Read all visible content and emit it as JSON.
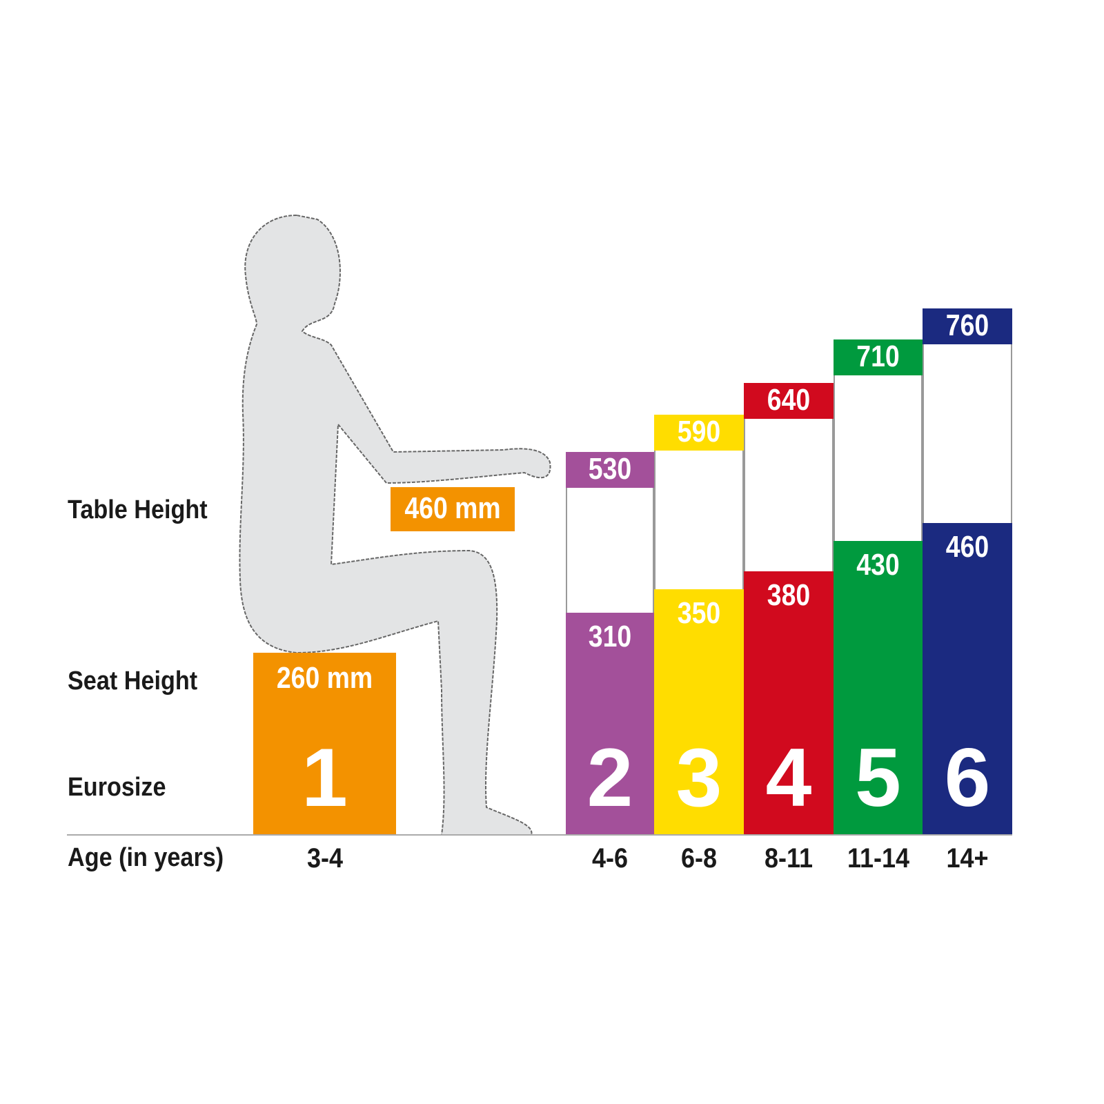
{
  "row_labels": {
    "table_height": "Table Height",
    "seat_height": "Seat Height",
    "eurosize": "Eurosize",
    "age": "Age (in years)"
  },
  "chart_data": {
    "type": "bar",
    "units": "mm",
    "categories": [
      "1",
      "2",
      "3",
      "4",
      "5",
      "6"
    ],
    "ages": [
      "3-4",
      "4-6",
      "6-8",
      "8-11",
      "11-14",
      "14+"
    ],
    "seat_height": [
      260,
      310,
      350,
      380,
      430,
      460
    ],
    "table_height": [
      460,
      530,
      590,
      640,
      710,
      760
    ],
    "seat_labels": [
      "260 mm",
      "310",
      "350",
      "380",
      "430",
      "460"
    ],
    "table_labels": [
      "460 mm",
      "530",
      "590",
      "640",
      "710",
      "760"
    ],
    "colors": [
      "#f39200",
      "#a3509a",
      "#ffdd00",
      "#d10a1e",
      "#009a3e",
      "#1b2a80"
    ]
  }
}
